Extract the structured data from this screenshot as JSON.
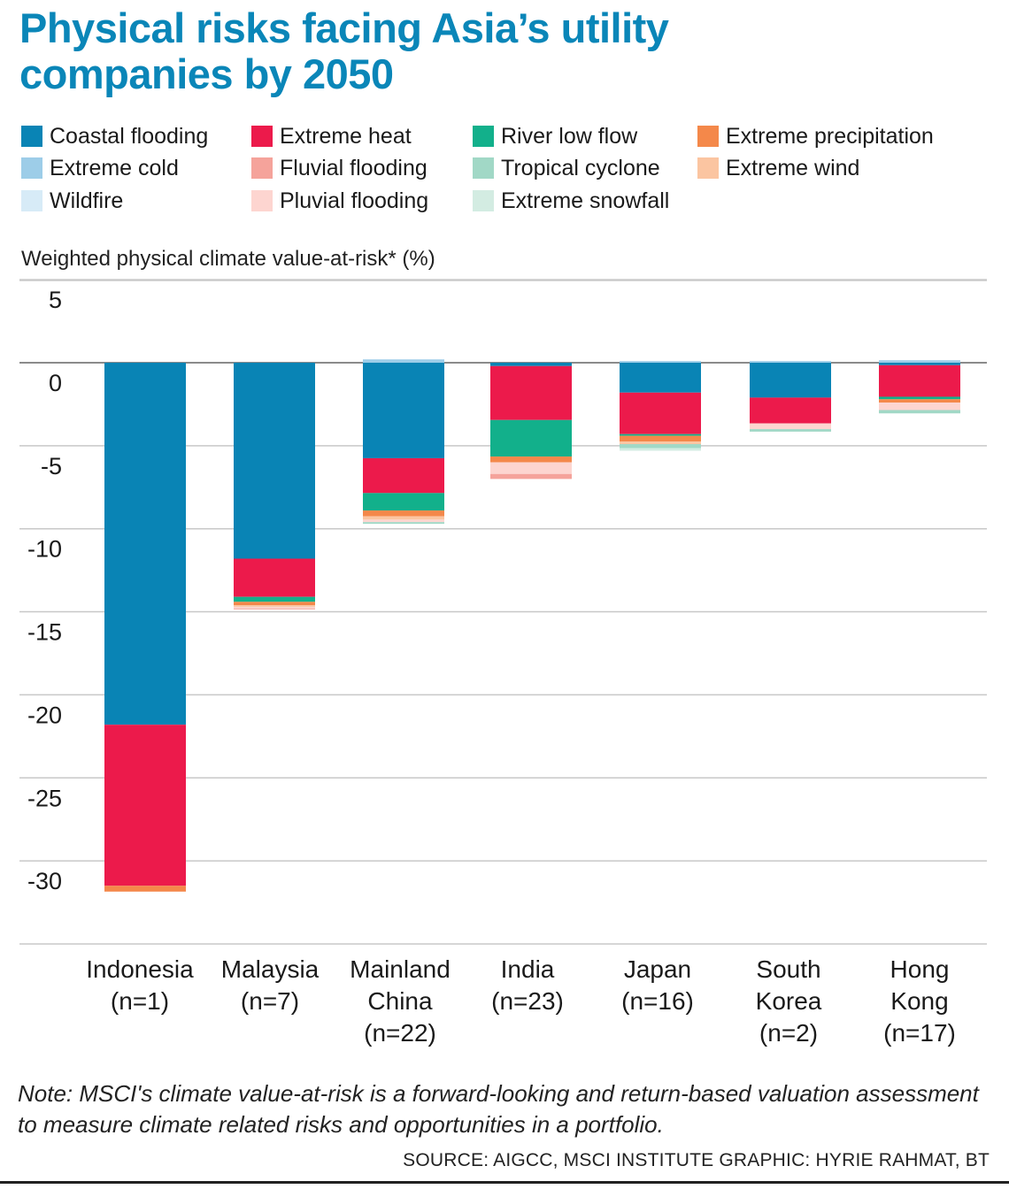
{
  "title": "Physical risks facing Asia’s utility companies by 2050",
  "legend": [
    {
      "label": "Coastal flooding",
      "color": "#0984b5"
    },
    {
      "label": "Extreme heat",
      "color": "#ec1a4b"
    },
    {
      "label": "River low flow",
      "color": "#12b08b"
    },
    {
      "label": "Extreme precipitation",
      "color": "#f4884a"
    },
    {
      "label": "Extreme cold",
      "color": "#9dcde8"
    },
    {
      "label": "Fluvial flooding",
      "color": "#f5a39b"
    },
    {
      "label": "Tropical cyclone",
      "color": "#a1d8c6"
    },
    {
      "label": "Extreme wind",
      "color": "#fbc5a1"
    },
    {
      "label": "Wildfire",
      "color": "#d7ebf7"
    },
    {
      "label": "Pluvial flooding",
      "color": "#fdd5d0"
    },
    {
      "label": "Extreme snowfall",
      "color": "#d3ece2"
    }
  ],
  "note": "Note: MSCI's climate value-at-risk is a forward-looking and return-based valuation assessment to measure climate related risks and opportunities in a portfolio.",
  "source": "SOURCE: AIGCC, MSCI INSTITUTE   GRAPHIC: HYRIE RAHMAT, BT",
  "chart_data": {
    "type": "bar",
    "stacked": true,
    "title": "Physical risks facing Asia’s utility companies by 2050",
    "xlabel": "",
    "ylabel": "Weighted physical climate value-at-risk* (%)",
    "ylim": [
      -35,
      5
    ],
    "yticks": [
      5,
      0,
      -5,
      -10,
      -15,
      -20,
      -25,
      -30
    ],
    "ytick_labels": [
      "5",
      "0",
      "-5",
      "-10",
      "-15",
      "-20",
      "-25",
      "-30"
    ],
    "grid": true,
    "legend_position": "top",
    "categories": [
      {
        "name": "Indonesia",
        "n": "(n=1)",
        "lines": [
          "Indonesia",
          "(n=1)"
        ]
      },
      {
        "name": "Malaysia",
        "n": "(n=7)",
        "lines": [
          "Malaysia",
          "(n=7)"
        ]
      },
      {
        "name": "Mainland China",
        "n": "(n=22)",
        "lines": [
          "Mainland",
          "China",
          "(n=22)"
        ]
      },
      {
        "name": "India",
        "n": "(n=23)",
        "lines": [
          "India",
          "(n=23)"
        ]
      },
      {
        "name": "Japan",
        "n": "(n=16)",
        "lines": [
          "Japan",
          "(n=16)"
        ]
      },
      {
        "name": "South Korea",
        "n": "(n=2)",
        "lines": [
          "South",
          "Korea",
          "(n=2)"
        ]
      },
      {
        "name": "Hong Kong",
        "n": "(n=17)",
        "lines": [
          "Hong",
          "Kong",
          "(n=17)"
        ]
      }
    ],
    "series": [
      {
        "name": "Extreme cold",
        "values": [
          0,
          0,
          0.2,
          0,
          0.1,
          0.1,
          0.15
        ]
      },
      {
        "name": "Coastal flooding",
        "values": [
          -21.8,
          -11.8,
          -5.75,
          -0.2,
          -1.8,
          -2.1,
          -0.15
        ]
      },
      {
        "name": "Extreme heat",
        "values": [
          -9.7,
          -2.3,
          -2.1,
          -3.25,
          -2.5,
          -1.55,
          -1.9
        ]
      },
      {
        "name": "River low flow",
        "values": [
          0,
          -0.3,
          -1.05,
          -2.2,
          -0.1,
          0,
          -0.15
        ]
      },
      {
        "name": "Extreme precipitation",
        "values": [
          -0.35,
          -0.2,
          -0.35,
          -0.35,
          -0.35,
          0,
          -0.2
        ]
      },
      {
        "name": "Extreme wind",
        "values": [
          0,
          -0.1,
          -0.2,
          0,
          -0.15,
          0,
          0
        ]
      },
      {
        "name": "Pluvial flooding",
        "values": [
          0,
          -0.1,
          -0.15,
          -0.7,
          0,
          -0.35,
          -0.45
        ]
      },
      {
        "name": "Fluvial flooding",
        "values": [
          0,
          -0.05,
          0,
          -0.3,
          0,
          0,
          0
        ]
      },
      {
        "name": "Tropical cyclone",
        "values": [
          0,
          0,
          -0.1,
          0,
          -0.25,
          -0.15,
          -0.2
        ]
      },
      {
        "name": "Extreme snowfall",
        "values": [
          0,
          0,
          0,
          0,
          -0.15,
          0,
          0
        ]
      },
      {
        "name": "Wildfire",
        "values": [
          0,
          0,
          0,
          0,
          0,
          0,
          0
        ]
      }
    ]
  }
}
